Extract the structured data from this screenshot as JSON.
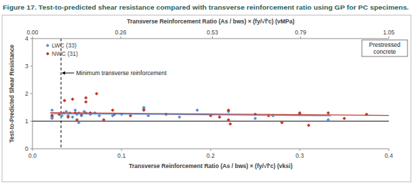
{
  "chart_data": {
    "type": "scatter",
    "title": "Figure 17. Test-to-predicted shear resistance compared  with transverse reinforcement ratio using GP for PC specimens.",
    "x_label": "Transverse Reinforcement Ratio (As / bws) × (fy/√f'c) (vksi)",
    "x2_label": "Transverse Reinforcement Ratio (As / bws) × (fy/√f'c) (vMPa)",
    "y_label": "Test-to-Predicted Shear Resistance",
    "xlim": [
      0,
      0.4
    ],
    "xticks": [
      {
        "value": 0,
        "label": "0.0"
      },
      0.1,
      0.2,
      0.3,
      0.4
    ],
    "x2lim": [
      0,
      1.05
    ],
    "x2ticks": [
      {
        "value": 0,
        "label": "0.00"
      },
      0.26,
      0.53,
      0.79,
      1.05
    ],
    "ylim": [
      0,
      4
    ],
    "yticks": [
      0,
      1,
      2,
      3,
      4
    ],
    "grid": false,
    "legend": "top-left",
    "series": [
      {
        "name": "LWC (33)",
        "color": "#5b8fd6",
        "marker": "diamond",
        "x": [
          0.022,
          0.022,
          0.022,
          0.022,
          0.03,
          0.033,
          0.035,
          0.038,
          0.04,
          0.042,
          0.045,
          0.048,
          0.05,
          0.052,
          0.052,
          0.055,
          0.058,
          0.06,
          0.065,
          0.07,
          0.075,
          0.09,
          0.1,
          0.125,
          0.125,
          0.13,
          0.165,
          0.185,
          0.22,
          0.25,
          0.27,
          0.3,
          0.332
        ],
        "values": [
          1.4,
          1.2,
          1.15,
          1.1,
          1.25,
          1.2,
          1.3,
          1.35,
          1.2,
          1.3,
          1.15,
          1.4,
          1.25,
          1.3,
          0.95,
          1.2,
          1.35,
          1.3,
          1.25,
          1.3,
          1.2,
          1.2,
          1.25,
          1.5,
          1.45,
          1.2,
          1.15,
          1.4,
          1.35,
          1.1,
          1.2,
          1.25,
          1.05
        ],
        "trend_x": [
          0.02,
          0.335
        ],
        "trend_values": [
          1.27,
          1.2
        ]
      },
      {
        "name": "NWC (31)",
        "color": "#c0392b",
        "marker": "diamond",
        "x": [
          0.022,
          0.03,
          0.036,
          0.04,
          0.045,
          0.048,
          0.05,
          0.055,
          0.06,
          0.06,
          0.065,
          0.072,
          0.08,
          0.09,
          0.092,
          0.11,
          0.125,
          0.15,
          0.2,
          0.21,
          0.22,
          0.22,
          0.222,
          0.25,
          0.265,
          0.28,
          0.3,
          0.31,
          0.332,
          0.35,
          0.375
        ],
        "values": [
          1.2,
          1.25,
          1.75,
          1.15,
          1.8,
          1.3,
          1.05,
          1.25,
          1.85,
          1.7,
          1.3,
          2.0,
          1.05,
          1.4,
          1.25,
          1.2,
          1.4,
          1.25,
          1.2,
          1.15,
          1.4,
          1.05,
          0.9,
          1.25,
          1.2,
          0.95,
          1.3,
          0.85,
          1.3,
          1.1,
          1.25
        ],
        "trend_x": [
          0.02,
          0.4
        ],
        "trend_values": [
          1.31,
          1.21
        ]
      }
    ],
    "reference_y": 1,
    "annotation": {
      "text": "Minimum transverse reinforcement",
      "x": 0.032,
      "y": 2.75
    },
    "note_box": "Prestressed concrete"
  }
}
